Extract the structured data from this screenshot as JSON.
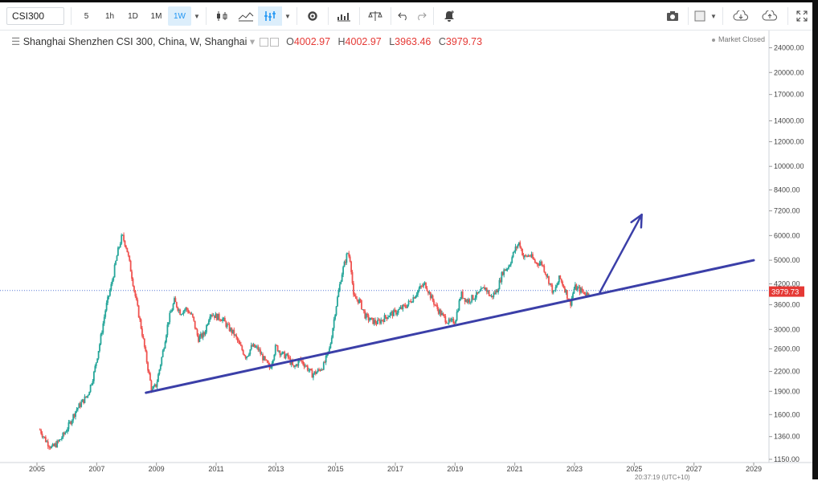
{
  "toolbar": {
    "symbol": "CSI300",
    "intervals": [
      "5",
      "1h",
      "1D",
      "1M",
      "1W"
    ],
    "active_interval": "1W",
    "icons": [
      "candles-icon",
      "compare-icon",
      "indicators-icon",
      "settings-icon",
      "templates-icon",
      "scale-icon",
      "undo-icon",
      "redo-icon",
      "alert-icon"
    ],
    "right_icons": [
      "camera-icon",
      "rect-icon",
      "cloud-down-icon",
      "cloud-up-icon",
      "fullscreen-icon"
    ]
  },
  "legend": {
    "title": "Shanghai Shenzhen CSI 300, China, W, Shanghai",
    "o_label": "O",
    "o_value": "4002.97",
    "h_label": "H",
    "h_value": "4002.97",
    "l_label": "L",
    "l_value": "3963.46",
    "c_label": "C",
    "c_value": "3979.73",
    "market_status": "Market Closed"
  },
  "chart_data": {
    "type": "candlestick",
    "title": "Shanghai Shenzhen CSI 300, China, W, Shanghai",
    "scale": "log",
    "ylim": [
      1150,
      26000
    ],
    "xlim": [
      2004.8,
      2029.2
    ],
    "y_ticks": [
      "24000.00",
      "20000.00",
      "17000.00",
      "14000.00",
      "12000.00",
      "10000.00",
      "8400.00",
      "7200.00",
      "6000.00",
      "5000.00",
      "4200.00",
      "3600.00",
      "3000.00",
      "2600.00",
      "2200.00",
      "1900.00",
      "1600.00",
      "1360.00",
      "1150.00"
    ],
    "y_tick_values": [
      24000,
      20000,
      17000,
      14000,
      12000,
      10000,
      8400,
      7200,
      6000,
      5000,
      4200,
      3600,
      3000,
      2600,
      2200,
      1900,
      1600,
      1360,
      1150
    ],
    "x_ticks": [
      "2005",
      "2007",
      "2009",
      "2011",
      "2013",
      "2015",
      "2017",
      "2019",
      "2021",
      "2023",
      "2025",
      "2027",
      "2029"
    ],
    "x_tick_values": [
      2005,
      2007,
      2009,
      2011,
      2013,
      2015,
      2017,
      2019,
      2021,
      2023,
      2025,
      2027,
      2029
    ],
    "last_price": 3979.73,
    "last_price_label": "3979.73",
    "price_series": [
      [
        2005.1,
        1430
      ],
      [
        2005.3,
        1320
      ],
      [
        2005.5,
        1250
      ],
      [
        2005.7,
        1300
      ],
      [
        2005.9,
        1380
      ],
      [
        2006.1,
        1500
      ],
      [
        2006.3,
        1650
      ],
      [
        2006.5,
        1750
      ],
      [
        2006.7,
        1850
      ],
      [
        2006.9,
        2150
      ],
      [
        2007.1,
        2700
      ],
      [
        2007.3,
        3500
      ],
      [
        2007.5,
        4200
      ],
      [
        2007.7,
        5300
      ],
      [
        2007.85,
        6000
      ],
      [
        2008.0,
        5500
      ],
      [
        2008.15,
        4600
      ],
      [
        2008.3,
        3800
      ],
      [
        2008.5,
        3000
      ],
      [
        2008.7,
        2300
      ],
      [
        2008.85,
        1900
      ],
      [
        2009.0,
        2000
      ],
      [
        2009.2,
        2500
      ],
      [
        2009.4,
        3200
      ],
      [
        2009.6,
        3700
      ],
      [
        2009.8,
        3400
      ],
      [
        2010.0,
        3500
      ],
      [
        2010.2,
        3300
      ],
      [
        2010.4,
        2800
      ],
      [
        2010.6,
        2900
      ],
      [
        2010.8,
        3400
      ],
      [
        2011.0,
        3300
      ],
      [
        2011.2,
        3250
      ],
      [
        2011.4,
        3050
      ],
      [
        2011.6,
        2900
      ],
      [
        2011.8,
        2650
      ],
      [
        2012.0,
        2450
      ],
      [
        2012.2,
        2650
      ],
      [
        2012.4,
        2600
      ],
      [
        2012.6,
        2400
      ],
      [
        2012.8,
        2250
      ],
      [
        2013.0,
        2650
      ],
      [
        2013.2,
        2500
      ],
      [
        2013.4,
        2450
      ],
      [
        2013.6,
        2250
      ],
      [
        2013.8,
        2400
      ],
      [
        2014.0,
        2300
      ],
      [
        2014.2,
        2150
      ],
      [
        2014.4,
        2200
      ],
      [
        2014.6,
        2300
      ],
      [
        2014.8,
        2600
      ],
      [
        2015.0,
        3500
      ],
      [
        2015.2,
        4500
      ],
      [
        2015.4,
        5300
      ],
      [
        2015.5,
        5000
      ],
      [
        2015.6,
        3800
      ],
      [
        2015.8,
        3700
      ],
      [
        2016.0,
        3300
      ],
      [
        2016.2,
        3200
      ],
      [
        2016.4,
        3150
      ],
      [
        2016.6,
        3250
      ],
      [
        2016.8,
        3350
      ],
      [
        2017.0,
        3400
      ],
      [
        2017.2,
        3500
      ],
      [
        2017.4,
        3600
      ],
      [
        2017.6,
        3800
      ],
      [
        2017.8,
        4050
      ],
      [
        2018.0,
        4200
      ],
      [
        2018.2,
        3800
      ],
      [
        2018.4,
        3500
      ],
      [
        2018.6,
        3300
      ],
      [
        2018.8,
        3150
      ],
      [
        2019.0,
        3200
      ],
      [
        2019.2,
        3900
      ],
      [
        2019.4,
        3700
      ],
      [
        2019.6,
        3800
      ],
      [
        2019.8,
        3900
      ],
      [
        2020.0,
        4100
      ],
      [
        2020.2,
        3800
      ],
      [
        2020.4,
        4000
      ],
      [
        2020.6,
        4600
      ],
      [
        2020.8,
        4800
      ],
      [
        2021.0,
        5400
      ],
      [
        2021.15,
        5700
      ],
      [
        2021.3,
        5100
      ],
      [
        2021.5,
        5200
      ],
      [
        2021.7,
        4900
      ],
      [
        2021.9,
        4900
      ],
      [
        2022.1,
        4400
      ],
      [
        2022.3,
        3900
      ],
      [
        2022.5,
        4400
      ],
      [
        2022.7,
        4000
      ],
      [
        2022.85,
        3600
      ],
      [
        2023.0,
        4100
      ],
      [
        2023.2,
        4000
      ],
      [
        2023.4,
        3900
      ],
      [
        2023.5,
        3980
      ]
    ],
    "annotations": {
      "horizontal_line": 4000,
      "trendline": [
        [
          2008.65,
          1880
        ],
        [
          2029.0,
          5000
        ]
      ],
      "arrow": [
        [
          2023.85,
          3950
        ],
        [
          2025.25,
          7000
        ]
      ]
    }
  },
  "status_text": "20:37:19 (UTC+10)"
}
